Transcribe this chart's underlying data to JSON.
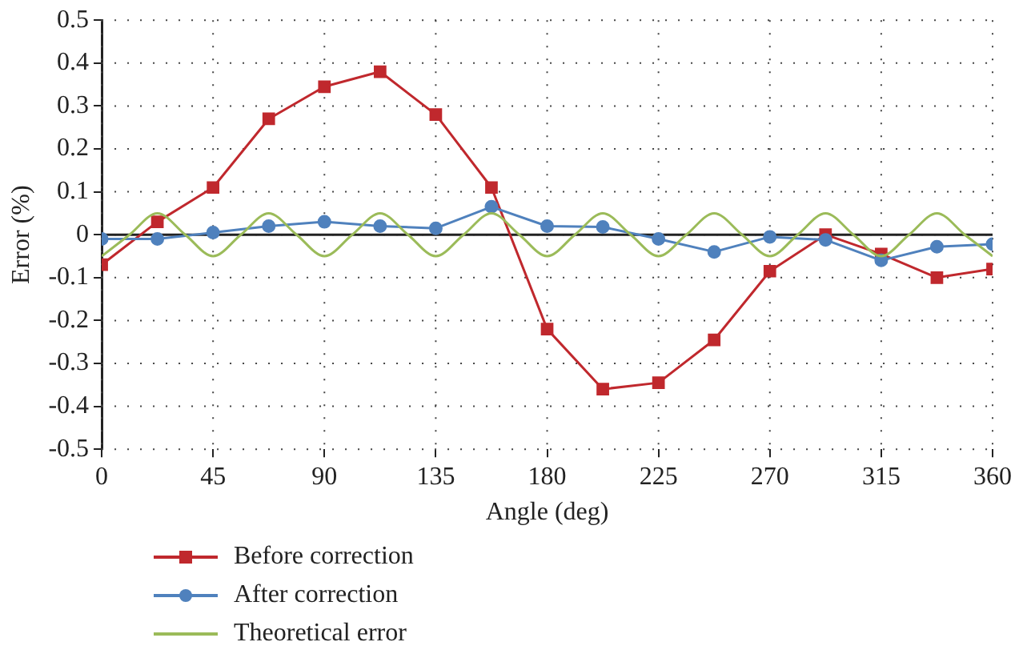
{
  "chart_data": {
    "type": "line",
    "xlabel": "Angle (deg)",
    "ylabel": "Error (%)",
    "xlim": [
      0,
      360
    ],
    "xticks": [
      0,
      45,
      90,
      135,
      180,
      225,
      270,
      315,
      360
    ],
    "ylim": [
      -0.5,
      0.5
    ],
    "yticks": [
      -0.5,
      -0.4,
      -0.3,
      -0.2,
      -0.1,
      0,
      0.1,
      0.2,
      0.3,
      0.4,
      0.5
    ],
    "grid": true,
    "legend": "bottom",
    "line_style": "solid",
    "series": [
      {
        "name": "Before correction",
        "color": "#c0282d",
        "marker": "square",
        "x": [
          0,
          22.5,
          45,
          67.5,
          90,
          112.5,
          135,
          157.5,
          180,
          202.5,
          225,
          247.5,
          270,
          292.5,
          315,
          337.5,
          360
        ],
        "values": [
          -0.07,
          0.03,
          0.11,
          0.27,
          0.345,
          0.38,
          0.28,
          0.11,
          -0.22,
          -0.36,
          -0.345,
          -0.245,
          -0.085,
          0.0,
          -0.045,
          -0.1,
          -0.08
        ]
      },
      {
        "name": "After correction",
        "color": "#4f81bd",
        "marker": "circle",
        "x": [
          0,
          22.5,
          45,
          67.5,
          90,
          112.5,
          135,
          157.5,
          180,
          202.5,
          225,
          247.5,
          270,
          292.5,
          315,
          337.5,
          360
        ],
        "values": [
          -0.01,
          -0.01,
          0.005,
          0.02,
          0.03,
          0.02,
          0.015,
          0.065,
          0.02,
          0.018,
          -0.01,
          -0.04,
          -0.005,
          -0.012,
          -0.06,
          -0.028,
          -0.022
        ]
      },
      {
        "name": "Theoretical error",
        "color": "#9bbb59",
        "marker": "none",
        "x": [
          0,
          11.25,
          22.5,
          33.75,
          45,
          56.25,
          67.5,
          78.75,
          90,
          101.25,
          112.5,
          123.75,
          135,
          146.25,
          157.5,
          168.75,
          180,
          191.25,
          202.5,
          213.75,
          225,
          236.25,
          247.5,
          258.75,
          270,
          281.25,
          292.5,
          303.75,
          315,
          326.25,
          337.5,
          348.75,
          360
        ],
        "values": [
          -0.05,
          0,
          0.05,
          0,
          -0.05,
          0,
          0.05,
          0,
          -0.05,
          0,
          0.05,
          0,
          -0.05,
          0,
          0.05,
          0,
          -0.05,
          0,
          0.05,
          0,
          -0.05,
          0,
          0.05,
          0,
          -0.05,
          0,
          0.05,
          0,
          -0.05,
          0,
          0.05,
          0,
          -0.05
        ]
      }
    ]
  }
}
